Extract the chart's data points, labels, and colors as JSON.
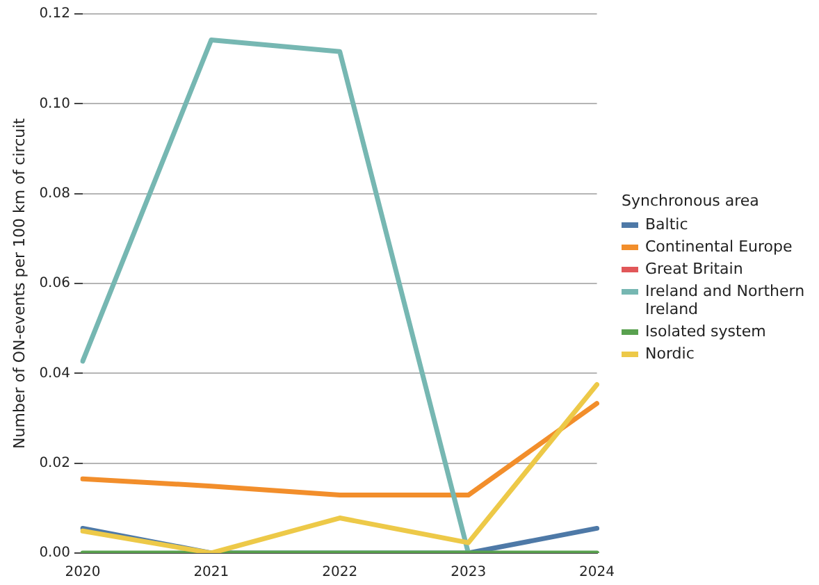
{
  "chart_data": {
    "type": "line",
    "ylabel": "Number of ON-events per 100 km of circuit",
    "legend_title": "Synchronous area",
    "legend": "right",
    "grid": "y",
    "marker": "none",
    "line_style": "solid",
    "categories": [
      "2020",
      "2021",
      "2022",
      "2023",
      "2024"
    ],
    "ylim": [
      0,
      0.12
    ],
    "yticks": [
      {
        "value": 0,
        "label": "0.00"
      },
      {
        "value": 0.02,
        "label": "0.02"
      },
      {
        "value": 0.04,
        "label": "0.04"
      },
      {
        "value": 0.06,
        "label": "0.06"
      },
      {
        "value": 0.08,
        "label": "0.08"
      },
      {
        "value": 0.1,
        "label": "0.10"
      },
      {
        "value": 0.12,
        "label": "0.12"
      }
    ],
    "series": [
      {
        "name": "Baltic",
        "color": "#4e79a7",
        "values": [
          0.0055,
          0,
          0,
          0,
          0.0055
        ]
      },
      {
        "name": "Continental Europe",
        "color": "#f28e2b",
        "values": [
          0.0165,
          0.0149,
          0.0129,
          0.0129,
          0.0333
        ]
      },
      {
        "name": "Great Britain",
        "color": "#e15759",
        "values": [
          null,
          null,
          null,
          null,
          null
        ]
      },
      {
        "name": "Ireland and Northern Ireland",
        "color": "#76b7b2",
        "values": [
          0.0427,
          0.1142,
          0.1116,
          0,
          null
        ]
      },
      {
        "name": "Isolated system",
        "color": "#59a14f",
        "values": [
          0,
          0,
          0,
          0,
          0
        ]
      },
      {
        "name": "Nordic",
        "color": "#edc948",
        "values": [
          0.0049,
          0,
          0.0078,
          0.0023,
          0.0375
        ]
      }
    ]
  }
}
